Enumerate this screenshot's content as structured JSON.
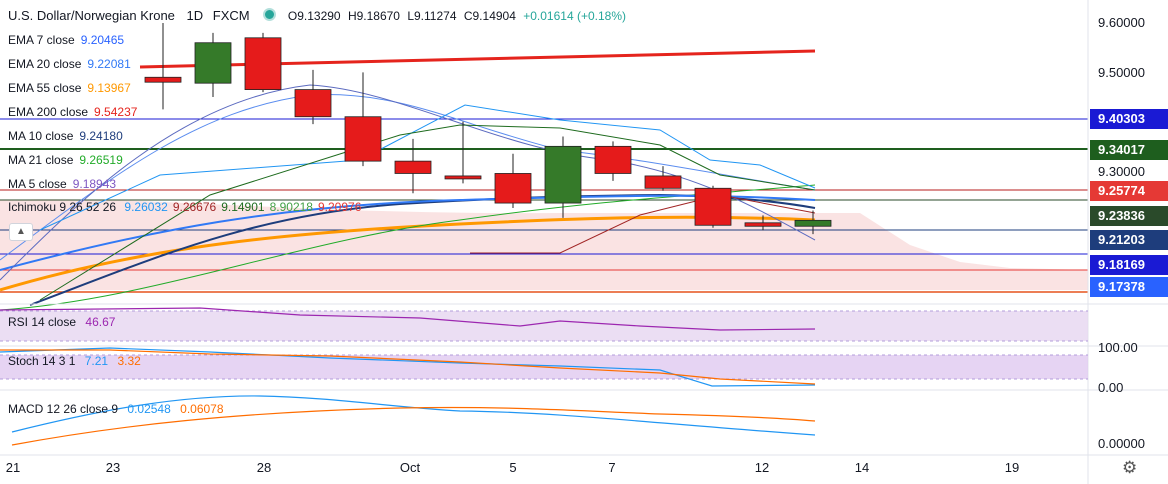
{
  "header": {
    "symbol": "U.S. Dollar/Norwegian Krone",
    "interval": "1D",
    "source": "FXCM",
    "open": "O9.13290",
    "high": "H9.18670",
    "low": "L9.11274",
    "close": "C9.14904",
    "change": "+0.01614 (+0.18%)"
  },
  "legend": [
    {
      "label": "EMA 7 close",
      "value": "9.20465",
      "color": "#2962ff"
    },
    {
      "label": "EMA 20 close",
      "value": "9.22081",
      "color": "#3179f5"
    },
    {
      "label": "EMA 55 close",
      "value": "9.13967",
      "color": "#ff9800"
    },
    {
      "label": "EMA 200 close",
      "value": "9.54237",
      "color": "#e5241d"
    },
    {
      "label": "MA 10 close",
      "value": "9.24180",
      "color": "#1e3d7c"
    },
    {
      "label": "MA 21 close",
      "value": "9.26519",
      "color": "#22ab29"
    },
    {
      "label": "MA 5 close",
      "value": "9.18943",
      "color": "#7e57c2"
    }
  ],
  "ichimoku": {
    "label": "Ichimoku 9 26 52 26",
    "values": [
      {
        "v": "9.26032",
        "color": "#2196f3"
      },
      {
        "v": "9.26676",
        "color": "#a12525"
      },
      {
        "v": "9.14901",
        "color": "#1e6b1e"
      },
      {
        "v": "8.90218",
        "color": "#43a047"
      },
      {
        "v": "9.20976",
        "color": "#e53935"
      }
    ]
  },
  "price_axis": {
    "ticks": [
      "9.60000",
      "9.50000",
      "9.30000"
    ],
    "tags": [
      {
        "value": "9.40303",
        "bg": "#1a1ad4",
        "fg": "#ffffff"
      },
      {
        "value": "9.34017",
        "bg": "#1e5e1e",
        "fg": "#ffffff"
      },
      {
        "value": "9.25774",
        "bg": "#e53935",
        "fg": "#ffffff"
      },
      {
        "value": "9.23836",
        "bg": "#2a4a2a",
        "fg": "#ffffff"
      },
      {
        "value": "9.21203",
        "bg": "#1e3d7c",
        "fg": "#ffffff"
      },
      {
        "value": "9.18169",
        "bg": "#1a1ad4",
        "fg": "#ffffff"
      },
      {
        "value": "9.17378",
        "bg": "#2962ff",
        "fg": "#ffffff"
      }
    ]
  },
  "rsi": {
    "label": "RSI 14 close",
    "value": "46.67",
    "color": "#9c27b0"
  },
  "stoch": {
    "label": "Stoch 14 3 1",
    "k": "7.21",
    "d": "3.32",
    "k_color": "#2196f3",
    "d_color": "#ff6d00",
    "axis": [
      "100.00",
      "0.00"
    ]
  },
  "macd": {
    "label": "MACD 12 26 close 9",
    "macd": "0.02548",
    "signal": "0.06078",
    "macd_color": "#2196f3",
    "signal_color": "#ff6d00",
    "axis": [
      "0.00000"
    ]
  },
  "x_axis": [
    "21",
    "23",
    "28",
    "Oct",
    "5",
    "7",
    "12",
    "14",
    "19"
  ],
  "chart_data": {
    "type": "candlestick",
    "candles": [
      {
        "o": 9.49,
        "h": 9.6,
        "l": 9.425,
        "c": 9.48,
        "dir": "down"
      },
      {
        "o": 9.478,
        "h": 9.58,
        "l": 9.45,
        "c": 9.56,
        "dir": "up"
      },
      {
        "o": 9.57,
        "h": 9.58,
        "l": 9.46,
        "c": 9.465,
        "dir": "down"
      },
      {
        "o": 9.465,
        "h": 9.505,
        "l": 9.395,
        "c": 9.41,
        "dir": "down"
      },
      {
        "o": 9.41,
        "h": 9.5,
        "l": 9.31,
        "c": 9.32,
        "dir": "down"
      },
      {
        "o": 9.32,
        "h": 9.365,
        "l": 9.255,
        "c": 9.295,
        "dir": "down"
      },
      {
        "o": 9.29,
        "h": 9.4,
        "l": 9.275,
        "c": 9.285,
        "dir": "down"
      },
      {
        "o": 9.295,
        "h": 9.335,
        "l": 9.225,
        "c": 9.235,
        "dir": "down"
      },
      {
        "o": 9.235,
        "h": 9.37,
        "l": 9.205,
        "c": 9.35,
        "dir": "up"
      },
      {
        "o": 9.35,
        "h": 9.36,
        "l": 9.28,
        "c": 9.295,
        "dir": "down"
      },
      {
        "o": 9.29,
        "h": 9.31,
        "l": 9.26,
        "c": 9.265,
        "dir": "down"
      },
      {
        "o": 9.265,
        "h": 9.27,
        "l": 9.185,
        "c": 9.19,
        "dir": "down"
      },
      {
        "o": 9.195,
        "h": 9.21,
        "l": 9.18,
        "c": 9.188,
        "dir": "down"
      },
      {
        "o": 9.188,
        "h": 9.22,
        "l": 9.172,
        "c": 9.2,
        "dir": "up"
      }
    ]
  }
}
